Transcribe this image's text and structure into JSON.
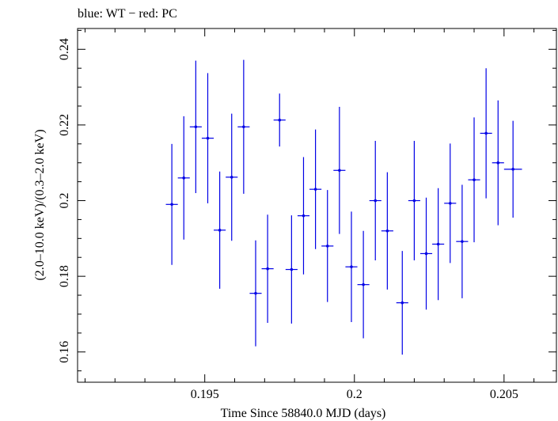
{
  "chart_data": {
    "type": "scatter",
    "title": "blue: WT − red: PC",
    "xlabel": "Time Since 58840.0 MJD (days)",
    "ylabel": "(2.0–10.0 keV)/(0.3–2.0 keV)",
    "xlim": [
      0.19075,
      0.20675
    ],
    "ylim": [
      0.152,
      0.2455
    ],
    "xticks": [
      0.195,
      0.2,
      0.205
    ],
    "xtick_labels": [
      "0.195",
      "0.2",
      "0.205"
    ],
    "yticks": [
      0.16,
      0.18,
      0.2,
      0.22,
      0.24
    ],
    "ytick_labels": [
      "0.16",
      "0.18",
      "0.2",
      "0.22",
      "0.24"
    ],
    "grid": false,
    "series": [
      {
        "color": "#0000e6",
        "points": [
          {
            "x": 0.1939,
            "xerr": 0.0002,
            "y": 0.199,
            "yerr": 0.016
          },
          {
            "x": 0.1943,
            "xerr": 0.0002,
            "y": 0.206,
            "yerr": 0.0163
          },
          {
            "x": 0.1947,
            "xerr": 0.0002,
            "y": 0.2195,
            "yerr": 0.0175
          },
          {
            "x": 0.1951,
            "xerr": 0.0002,
            "y": 0.2165,
            "yerr": 0.0172
          },
          {
            "x": 0.1955,
            "xerr": 0.0002,
            "y": 0.1922,
            "yerr": 0.0155
          },
          {
            "x": 0.1959,
            "xerr": 0.0002,
            "y": 0.2062,
            "yerr": 0.0168
          },
          {
            "x": 0.1963,
            "xerr": 0.0002,
            "y": 0.2195,
            "yerr": 0.0177
          },
          {
            "x": 0.1967,
            "xerr": 0.0002,
            "y": 0.1755,
            "yerr": 0.014
          },
          {
            "x": 0.1971,
            "xerr": 0.0002,
            "y": 0.182,
            "yerr": 0.0143
          },
          {
            "x": 0.1975,
            "xerr": 0.0002,
            "y": 0.2213,
            "yerr": 0.007
          },
          {
            "x": 0.1979,
            "xerr": 0.0002,
            "y": 0.1818,
            "yerr": 0.0143
          },
          {
            "x": 0.1983,
            "xerr": 0.0002,
            "y": 0.196,
            "yerr": 0.0155
          },
          {
            "x": 0.1987,
            "xerr": 0.0002,
            "y": 0.203,
            "yerr": 0.0158
          },
          {
            "x": 0.1991,
            "xerr": 0.0002,
            "y": 0.188,
            "yerr": 0.0148
          },
          {
            "x": 0.1995,
            "xerr": 0.0002,
            "y": 0.208,
            "yerr": 0.0168
          },
          {
            "x": 0.1999,
            "xerr": 0.0002,
            "y": 0.1825,
            "yerr": 0.0146
          },
          {
            "x": 0.2003,
            "xerr": 0.0002,
            "y": 0.1778,
            "yerr": 0.0142
          },
          {
            "x": 0.2007,
            "xerr": 0.0002,
            "y": 0.2,
            "yerr": 0.0158
          },
          {
            "x": 0.2011,
            "xerr": 0.0002,
            "y": 0.192,
            "yerr": 0.0155
          },
          {
            "x": 0.2016,
            "xerr": 0.0002,
            "y": 0.173,
            "yerr": 0.0137
          },
          {
            "x": 0.202,
            "xerr": 0.0002,
            "y": 0.2,
            "yerr": 0.0158
          },
          {
            "x": 0.2024,
            "xerr": 0.0002,
            "y": 0.186,
            "yerr": 0.0148
          },
          {
            "x": 0.2028,
            "xerr": 0.0002,
            "y": 0.1885,
            "yerr": 0.0148
          },
          {
            "x": 0.2032,
            "xerr": 0.0002,
            "y": 0.1993,
            "yerr": 0.0158
          },
          {
            "x": 0.2036,
            "xerr": 0.0002,
            "y": 0.1892,
            "yerr": 0.015
          },
          {
            "x": 0.204,
            "xerr": 0.0002,
            "y": 0.2055,
            "yerr": 0.0165
          },
          {
            "x": 0.2044,
            "xerr": 0.0002,
            "y": 0.2178,
            "yerr": 0.0172
          },
          {
            "x": 0.2048,
            "xerr": 0.0002,
            "y": 0.21,
            "yerr": 0.0165
          },
          {
            "x": 0.2053,
            "xerr": 0.0003,
            "y": 0.2083,
            "yerr": 0.0128
          }
        ]
      }
    ]
  }
}
